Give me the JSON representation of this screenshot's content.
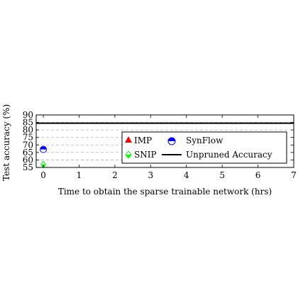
{
  "chart_data": {
    "type": "scatter",
    "xlabel": "Time to obtain the sparse trainable network (hrs)",
    "ylabel": "Test accuracy (%)",
    "xlim": [
      -0.2,
      7
    ],
    "ylim": [
      55,
      90
    ],
    "xticks": [
      0,
      1,
      2,
      3,
      4,
      5,
      6,
      7
    ],
    "yticks": [
      55,
      60,
      65,
      70,
      75,
      80,
      85,
      90
    ],
    "grid": "horizontal dashed",
    "legend_placement": "lower-right",
    "series": [
      {
        "name": "IMP",
        "marker": "triangle",
        "color": "#ff0000",
        "points": []
      },
      {
        "name": "SynFlow",
        "marker": "half-filled-circle",
        "color": "#0000ff",
        "points": [
          {
            "x": 0,
            "y": 67
          }
        ]
      },
      {
        "name": "SNIP",
        "marker": "half-filled-diamond",
        "color": "#00ff00",
        "points": [
          {
            "x": 0,
            "y": 57
          }
        ]
      }
    ],
    "reference_line": {
      "name": "Unpruned Accuracy",
      "y": 84.5,
      "color": "#000000",
      "style": "solid"
    }
  }
}
